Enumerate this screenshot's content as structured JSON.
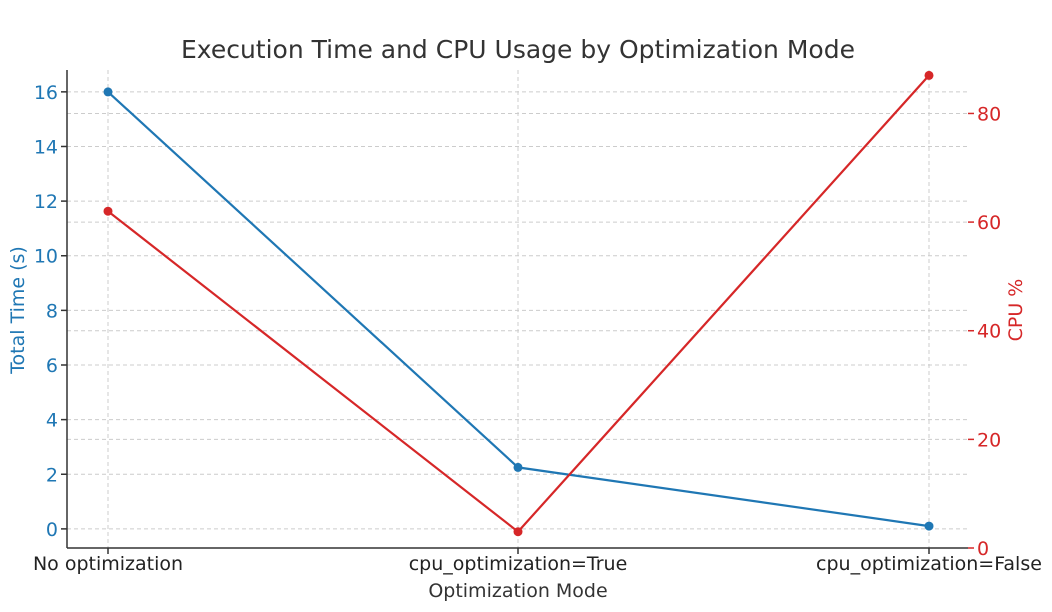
{
  "chart_data": {
    "type": "line",
    "title": "Execution Time and CPU Usage by Optimization Mode",
    "xlabel": "Optimization Mode",
    "categories": [
      "No optimization",
      "cpu_optimization=True",
      "cpu_optimization=False"
    ],
    "grid": true,
    "left_axis": {
      "label": "Total Time (s)",
      "color": "#1f77b4",
      "ylim": [
        -0.7,
        16.8
      ],
      "ticks": [
        0,
        2,
        4,
        6,
        8,
        10,
        12,
        14,
        16
      ]
    },
    "right_axis": {
      "label": "CPU %",
      "color": "#d62728",
      "ylim": [
        0,
        88
      ],
      "ticks": [
        0,
        20,
        40,
        60,
        80
      ]
    },
    "series": [
      {
        "axis": "left",
        "color": "#1f77b4",
        "values": [
          16.0,
          2.25,
          0.1
        ]
      },
      {
        "axis": "right",
        "color": "#d62728",
        "values": [
          62.0,
          3.0,
          87.0
        ]
      }
    ]
  }
}
